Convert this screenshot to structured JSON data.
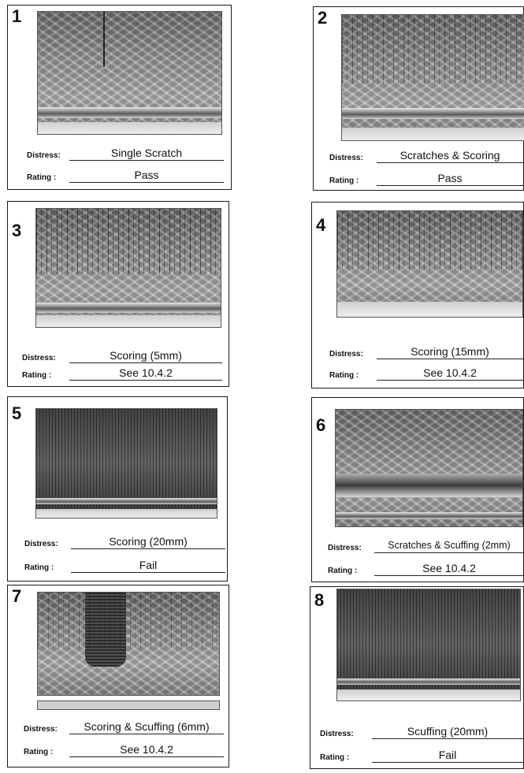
{
  "labels": {
    "distress": "Distress:",
    "rating": "Rating  :"
  },
  "panels": [
    {
      "number": "1",
      "distress": "Single Scratch",
      "rating": "Pass"
    },
    {
      "number": "2",
      "distress": "Scratches & Scoring",
      "rating": "Pass"
    },
    {
      "number": "3",
      "distress": "Scoring (5mm)",
      "rating": "See  10.4.2"
    },
    {
      "number": "4",
      "distress": "Scoring (15mm)",
      "rating": "See  10.4.2"
    },
    {
      "number": "5",
      "distress": "Scoring (20mm)",
      "rating": "Fail"
    },
    {
      "number": "6",
      "distress": "Scratches & Scuffing (2mm)",
      "rating": "See  10.4.2"
    },
    {
      "number": "7",
      "distress": "Scoring & Scuffing (6mm)",
      "rating": "See  10.4.2"
    },
    {
      "number": "8",
      "distress": "Scuffing (20mm)",
      "rating": "Fail"
    }
  ]
}
